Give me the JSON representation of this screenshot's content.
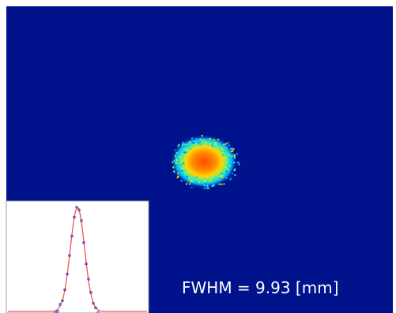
{
  "annotation": {
    "text": "FWHM = 9.93 [mm]"
  }
}
